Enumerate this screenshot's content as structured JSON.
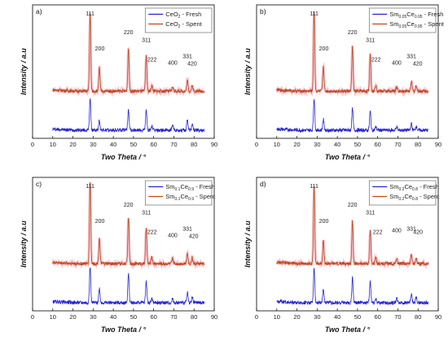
{
  "colors": {
    "fresh": "#2323d6",
    "spent": "#c0461c",
    "spent_glow": "#f0a0b0",
    "axis": "#000000"
  },
  "chart_data": [
    {
      "type": "line",
      "panel_label": "a)",
      "xlabel": "Two Theta / °",
      "ylabel": "Intensity / a.u",
      "xlim": [
        0,
        90
      ],
      "xticks": [
        "0",
        "10",
        "20",
        "30",
        "40",
        "50",
        "60",
        "70",
        "80",
        "90"
      ],
      "grid": false,
      "legend_position": "top-right",
      "legend": [
        {
          "series": "fresh",
          "base": "CeO",
          "sub": "2",
          "mid": "",
          "sub2": "",
          "suffix": " - Fresh"
        },
        {
          "series": "spent",
          "base": "CeO",
          "sub": "2",
          "mid": "",
          "sub2": "",
          "suffix": " - Spent"
        }
      ],
      "peak_labels": [
        {
          "text": "111",
          "x": 28.5,
          "level": 0.97
        },
        {
          "text": "200",
          "x": 33.3,
          "level": 0.52
        },
        {
          "text": "220",
          "x": 47.5,
          "level": 0.73
        },
        {
          "text": "311",
          "x": 56.4,
          "level": 0.63
        },
        {
          "text": "222",
          "x": 59.2,
          "level": 0.38
        },
        {
          "text": "400",
          "x": 69.4,
          "level": 0.34
        },
        {
          "text": "331",
          "x": 76.7,
          "level": 0.42
        },
        {
          "text": "420",
          "x": 79.1,
          "level": 0.33
        }
      ],
      "series": [
        {
          "key": "fresh",
          "peaks": [
            {
              "x": 28.5,
              "h": 0.9
            },
            {
              "x": 33.1,
              "h": 0.28
            },
            {
              "x": 47.5,
              "h": 0.6
            },
            {
              "x": 56.3,
              "h": 0.55
            },
            {
              "x": 59.1,
              "h": 0.12
            },
            {
              "x": 69.4,
              "h": 0.12
            },
            {
              "x": 76.7,
              "h": 0.3
            },
            {
              "x": 79.1,
              "h": 0.16
            }
          ]
        },
        {
          "key": "spent",
          "peaks": [
            {
              "x": 28.5,
              "h": 2.1
            },
            {
              "x": 33.1,
              "h": 0.62
            },
            {
              "x": 47.5,
              "h": 1.15
            },
            {
              "x": 56.3,
              "h": 0.96
            },
            {
              "x": 59.1,
              "h": 0.16
            },
            {
              "x": 69.4,
              "h": 0.12
            },
            {
              "x": 76.7,
              "h": 0.28
            },
            {
              "x": 79.1,
              "h": 0.15
            }
          ]
        }
      ]
    },
    {
      "type": "line",
      "panel_label": "b)",
      "xlabel": "Two Theta / °",
      "ylabel": "Intensity / a.u",
      "xlim": [
        0,
        90
      ],
      "xticks": [
        "0",
        "10",
        "20",
        "30",
        "40",
        "50",
        "60",
        "70",
        "80",
        "90"
      ],
      "grid": false,
      "legend_position": "top-right",
      "legend": [
        {
          "series": "fresh",
          "base": "Sm",
          "sub": "0.05",
          "mid": "Ce",
          "sub2": "0.95",
          "suffix": " - Fresh"
        },
        {
          "series": "spent",
          "base": "Sm",
          "sub": "0.05",
          "mid": "Ce",
          "sub2": "0.95",
          "suffix": " - Spent"
        }
      ],
      "peak_labels": [
        {
          "text": "111",
          "x": 28.5,
          "level": 0.97
        },
        {
          "text": "200",
          "x": 33.3,
          "level": 0.52
        },
        {
          "text": "220",
          "x": 47.5,
          "level": 0.73
        },
        {
          "text": "311",
          "x": 56.4,
          "level": 0.63
        },
        {
          "text": "222",
          "x": 59.2,
          "level": 0.38
        },
        {
          "text": "400",
          "x": 69.4,
          "level": 0.34
        },
        {
          "text": "331",
          "x": 76.7,
          "level": 0.42
        },
        {
          "text": "420",
          "x": 79.8,
          "level": 0.33
        }
      ],
      "series": [
        {
          "key": "fresh",
          "peaks": [
            {
              "x": 28.5,
              "h": 0.9
            },
            {
              "x": 33.1,
              "h": 0.3
            },
            {
              "x": 47.5,
              "h": 0.6
            },
            {
              "x": 56.3,
              "h": 0.52
            },
            {
              "x": 59.1,
              "h": 0.1
            },
            {
              "x": 69.4,
              "h": 0.1
            },
            {
              "x": 76.7,
              "h": 0.18
            },
            {
              "x": 79.1,
              "h": 0.12
            }
          ]
        },
        {
          "key": "spent",
          "peaks": [
            {
              "x": 28.5,
              "h": 2.15
            },
            {
              "x": 33.1,
              "h": 0.66
            },
            {
              "x": 47.5,
              "h": 1.2
            },
            {
              "x": 56.3,
              "h": 1.0
            },
            {
              "x": 59.1,
              "h": 0.18
            },
            {
              "x": 69.4,
              "h": 0.12
            },
            {
              "x": 76.7,
              "h": 0.26
            },
            {
              "x": 79.1,
              "h": 0.15
            }
          ]
        }
      ]
    },
    {
      "type": "line",
      "panel_label": "c)",
      "xlabel": "Two Theta / °",
      "ylabel": "Intensity / a.u",
      "xlim": [
        0,
        90
      ],
      "xticks": [
        "0",
        "10",
        "20",
        "30",
        "40",
        "50",
        "60",
        "70",
        "80",
        "90"
      ],
      "grid": false,
      "legend_position": "top-right",
      "legend": [
        {
          "series": "fresh",
          "base": "Sm",
          "sub": "0.1",
          "mid": "Ce",
          "sub2": "0.9",
          "suffix": " - Fresh"
        },
        {
          "series": "spent",
          "base": "Sm",
          "sub": "0.1",
          "mid": "Ce",
          "sub2": "0.9",
          "suffix": " - Spent"
        }
      ],
      "peak_labels": [
        {
          "text": "111",
          "x": 28.5,
          "level": 0.97
        },
        {
          "text": "200",
          "x": 33.3,
          "level": 0.52
        },
        {
          "text": "220",
          "x": 47.5,
          "level": 0.73
        },
        {
          "text": "311",
          "x": 56.4,
          "level": 0.63
        },
        {
          "text": "222",
          "x": 59.2,
          "level": 0.38
        },
        {
          "text": "400",
          "x": 69.4,
          "level": 0.34
        },
        {
          "text": "331",
          "x": 76.7,
          "level": 0.42
        },
        {
          "text": "420",
          "x": 79.8,
          "level": 0.33
        }
      ],
      "series": [
        {
          "key": "fresh",
          "peaks": [
            {
              "x": 28.5,
              "h": 1.0
            },
            {
              "x": 33.1,
              "h": 0.4
            },
            {
              "x": 47.5,
              "h": 0.8
            },
            {
              "x": 56.3,
              "h": 0.6
            },
            {
              "x": 59.1,
              "h": 0.12
            },
            {
              "x": 69.4,
              "h": 0.12
            },
            {
              "x": 76.7,
              "h": 0.28
            },
            {
              "x": 79.1,
              "h": 0.16
            }
          ]
        },
        {
          "key": "spent",
          "peaks": [
            {
              "x": 28.5,
              "h": 2.2
            },
            {
              "x": 33.1,
              "h": 0.7
            },
            {
              "x": 47.5,
              "h": 1.25
            },
            {
              "x": 56.3,
              "h": 0.95
            },
            {
              "x": 59.1,
              "h": 0.2
            },
            {
              "x": 69.4,
              "h": 0.14
            },
            {
              "x": 76.7,
              "h": 0.3
            },
            {
              "x": 79.1,
              "h": 0.16
            }
          ]
        }
      ]
    },
    {
      "type": "line",
      "panel_label": "d)",
      "xlabel": "Two Theta / °",
      "ylabel": "Intensity / a.u",
      "xlim": [
        0,
        90
      ],
      "xticks": [
        "0",
        "10",
        "20",
        "30",
        "40",
        "50",
        "60",
        "70",
        "80",
        "90"
      ],
      "grid": false,
      "legend_position": "top-right",
      "legend": [
        {
          "series": "fresh",
          "base": "Sm",
          "sub": "0.2",
          "mid": "Ce",
          "sub2": "0.8",
          "suffix": " - Fresh"
        },
        {
          "series": "spent",
          "base": "Sm",
          "sub": "0.2",
          "mid": "Ce",
          "sub2": "0.8",
          "suffix": " - Spent"
        }
      ],
      "peak_labels": [
        {
          "text": "111",
          "x": 28.5,
          "level": 0.97
        },
        {
          "text": "200",
          "x": 33.3,
          "level": 0.52
        },
        {
          "text": "220",
          "x": 47.5,
          "level": 0.73
        },
        {
          "text": "311",
          "x": 56.4,
          "level": 0.63
        },
        {
          "text": "222",
          "x": 60.0,
          "level": 0.38
        },
        {
          "text": "400",
          "x": 69.4,
          "level": 0.4
        },
        {
          "text": "331",
          "x": 76.7,
          "level": 0.42
        },
        {
          "text": "420",
          "x": 80.0,
          "level": 0.38
        }
      ],
      "series": [
        {
          "key": "fresh",
          "peaks": [
            {
              "x": 28.5,
              "h": 1.0
            },
            {
              "x": 33.1,
              "h": 0.35
            },
            {
              "x": 47.5,
              "h": 0.7
            },
            {
              "x": 56.3,
              "h": 0.6
            },
            {
              "x": 59.1,
              "h": 0.12
            },
            {
              "x": 69.4,
              "h": 0.12
            },
            {
              "x": 76.7,
              "h": 0.22
            },
            {
              "x": 79.1,
              "h": 0.14
            }
          ]
        },
        {
          "key": "spent",
          "peaks": [
            {
              "x": 28.5,
              "h": 2.1
            },
            {
              "x": 33.1,
              "h": 0.66
            },
            {
              "x": 47.5,
              "h": 1.15
            },
            {
              "x": 56.3,
              "h": 0.9
            },
            {
              "x": 59.1,
              "h": 0.18
            },
            {
              "x": 69.4,
              "h": 0.14
            },
            {
              "x": 76.7,
              "h": 0.26
            },
            {
              "x": 79.1,
              "h": 0.15
            }
          ]
        }
      ]
    }
  ]
}
